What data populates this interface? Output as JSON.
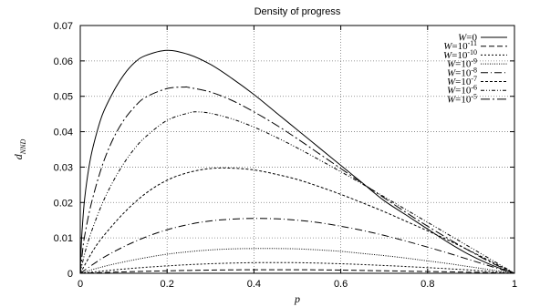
{
  "chart_data": {
    "type": "line",
    "title": "Density of progress",
    "xlabel": "p",
    "ylabel": "d_NND",
    "xlim": [
      0,
      1
    ],
    "ylim": [
      0,
      0.07
    ],
    "xticks": [
      "0",
      "0.2",
      "0.4",
      "0.6",
      "0.8",
      "1"
    ],
    "yticks": [
      "0",
      "0.01",
      "0.02",
      "0.03",
      "0.04",
      "0.05",
      "0.06",
      "0.07"
    ],
    "grid": true,
    "legend_position": "top-right",
    "series": [
      {
        "name": "W=0",
        "legend": {
          "base": "W=0",
          "sup": ""
        },
        "dash": "",
        "x": [
          0,
          0.0025,
          0.005,
          0.01,
          0.02,
          0.03,
          0.05,
          0.075,
          0.1,
          0.125,
          0.15,
          0.2,
          0.25,
          0.3,
          0.35,
          0.4,
          0.45,
          0.5,
          0.55,
          0.6,
          0.65,
          0.7,
          0.75,
          0.8,
          0.85,
          0.9,
          0.95,
          1
        ],
        "y": [
          0,
          0.0085,
          0.0135,
          0.021,
          0.03,
          0.036,
          0.0445,
          0.051,
          0.056,
          0.0595,
          0.0615,
          0.063,
          0.0618,
          0.059,
          0.055,
          0.0505,
          0.0455,
          0.0405,
          0.0355,
          0.0305,
          0.0255,
          0.0205,
          0.0165,
          0.0125,
          0.0085,
          0.005,
          0.0022,
          0
        ]
      },
      {
        "name": "W=10^-11",
        "legend": {
          "base": "W=10",
          "sup": "-11"
        },
        "dash": "6 3",
        "x": [
          0,
          0.1,
          0.2,
          0.3,
          0.4,
          0.5,
          0.6,
          0.7,
          0.8,
          0.9,
          1
        ],
        "y": [
          0,
          0.0004,
          0.0007,
          0.0009,
          0.001,
          0.001,
          0.0009,
          0.0007,
          0.0005,
          0.0003,
          0
        ]
      },
      {
        "name": "W=10^-10",
        "legend": {
          "base": "W=10",
          "sup": "-10"
        },
        "dash": "2 2",
        "x": [
          0,
          0.1,
          0.2,
          0.3,
          0.4,
          0.5,
          0.6,
          0.7,
          0.8,
          0.9,
          1
        ],
        "y": [
          0,
          0.0012,
          0.0021,
          0.0027,
          0.003,
          0.003,
          0.0027,
          0.0022,
          0.0016,
          0.0009,
          0
        ]
      },
      {
        "name": "W=10^-9",
        "legend": {
          "base": "W=10",
          "sup": "-9"
        },
        "dash": "1 1.5",
        "x": [
          0,
          0.05,
          0.1,
          0.15,
          0.2,
          0.25,
          0.3,
          0.35,
          0.4,
          0.45,
          0.5,
          0.55,
          0.6,
          0.65,
          0.7,
          0.75,
          0.8,
          0.85,
          0.9,
          0.95,
          1
        ],
        "y": [
          0,
          0.0018,
          0.0032,
          0.0044,
          0.0054,
          0.0061,
          0.0066,
          0.0069,
          0.007,
          0.007,
          0.0069,
          0.0066,
          0.0062,
          0.0056,
          0.005,
          0.0043,
          0.0035,
          0.0027,
          0.0018,
          0.0009,
          0
        ]
      },
      {
        "name": "W=10^-8",
        "legend": {
          "base": "W=10",
          "sup": "-8"
        },
        "dash": "8 3 1 3",
        "x": [
          0,
          0.05,
          0.1,
          0.15,
          0.2,
          0.25,
          0.3,
          0.35,
          0.4,
          0.45,
          0.5,
          0.55,
          0.6,
          0.65,
          0.7,
          0.75,
          0.8,
          0.85,
          0.9,
          0.95,
          1
        ],
        "y": [
          0,
          0.0042,
          0.0075,
          0.0102,
          0.0123,
          0.0138,
          0.0148,
          0.0153,
          0.0155,
          0.0154,
          0.015,
          0.0143,
          0.0133,
          0.0121,
          0.0107,
          0.0091,
          0.0074,
          0.0056,
          0.0037,
          0.0018,
          0
        ]
      },
      {
        "name": "W=10^-7",
        "legend": {
          "base": "W=10",
          "sup": "-7"
        },
        "dash": "3 2",
        "x": [
          0,
          0.025,
          0.05,
          0.1,
          0.15,
          0.2,
          0.25,
          0.3,
          0.35,
          0.4,
          0.45,
          0.5,
          0.55,
          0.6,
          0.65,
          0.7,
          0.75,
          0.8,
          0.85,
          0.9,
          0.95,
          1
        ],
        "y": [
          0,
          0.0055,
          0.01,
          0.017,
          0.0225,
          0.0263,
          0.0285,
          0.0296,
          0.0297,
          0.0292,
          0.028,
          0.0265,
          0.0245,
          0.0223,
          0.0199,
          0.0174,
          0.0147,
          0.012,
          0.0092,
          0.0062,
          0.0031,
          0
        ]
      },
      {
        "name": "W=10^-6",
        "legend": {
          "base": "W=10",
          "sup": "-6"
        },
        "dash": "4 2 1 2 1 2",
        "x": [
          0,
          0.01,
          0.025,
          0.05,
          0.075,
          0.1,
          0.125,
          0.15,
          0.2,
          0.25,
          0.27,
          0.3,
          0.35,
          0.4,
          0.45,
          0.5,
          0.55,
          0.6,
          0.65,
          0.7,
          0.75,
          0.8,
          0.85,
          0.9,
          0.95,
          1
        ],
        "y": [
          0,
          0.0055,
          0.0115,
          0.0195,
          0.0258,
          0.031,
          0.0352,
          0.0385,
          0.0432,
          0.0453,
          0.0456,
          0.0452,
          0.0436,
          0.0413,
          0.0385,
          0.0354,
          0.0321,
          0.0287,
          0.0252,
          0.0216,
          0.018,
          0.0144,
          0.0108,
          0.0072,
          0.0036,
          0
        ]
      },
      {
        "name": "W=10^-5",
        "legend": {
          "base": "W=10",
          "sup": "-5"
        },
        "dash": "10 3 2 3",
        "x": [
          0,
          0.005,
          0.01,
          0.025,
          0.05,
          0.075,
          0.1,
          0.125,
          0.15,
          0.2,
          0.24,
          0.25,
          0.3,
          0.35,
          0.4,
          0.45,
          0.5,
          0.55,
          0.6,
          0.65,
          0.7,
          0.75,
          0.8,
          0.85,
          0.9,
          0.95,
          1
        ],
        "y": [
          0,
          0.006,
          0.0105,
          0.0195,
          0.0302,
          0.0378,
          0.0432,
          0.047,
          0.0497,
          0.0522,
          0.0526,
          0.0525,
          0.0512,
          0.0488,
          0.0456,
          0.042,
          0.038,
          0.0338,
          0.0296,
          0.0254,
          0.0213,
          0.0172,
          0.0133,
          0.0096,
          0.0061,
          0.0028,
          0
        ]
      }
    ]
  }
}
